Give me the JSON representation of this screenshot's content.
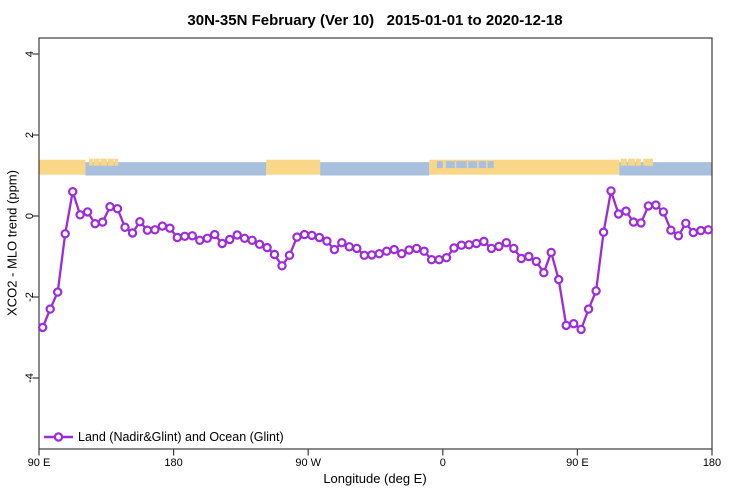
{
  "header": {
    "title": "30N-35N February (Ver 10)   2015-01-01 to 2020-12-18"
  },
  "chart_data": {
    "type": "line",
    "title": "30N-35N February (Ver 10)   2015-01-01 to 2020-12-18",
    "xlabel": "Longitude (deg E)",
    "ylabel": "XCO2 - MLO trend (ppm)",
    "grid": false,
    "xlim": [
      90,
      540
    ],
    "ylim": [
      -5.75,
      4.4
    ],
    "x_ticks": [
      {
        "deg": 90,
        "label": "90 E"
      },
      {
        "deg": 180,
        "label": "180"
      },
      {
        "deg": 270,
        "label": "90 W"
      },
      {
        "deg": 360,
        "label": "0"
      },
      {
        "deg": 450,
        "label": "90 E"
      },
      {
        "deg": 540,
        "label": "180"
      }
    ],
    "y_ticks": [
      {
        "value": 4,
        "label": "4"
      },
      {
        "value": 2,
        "label": "2"
      },
      {
        "value": 0,
        "label": "0"
      },
      {
        "value": -2,
        "label": "-2"
      },
      {
        "value": -4,
        "label": "-4"
      }
    ],
    "legend": {
      "label": "Land (Nadir&Glint) and Ocean (Glint)",
      "position": "bottom-left",
      "marker": "open-circle-on-line"
    },
    "series": [
      {
        "name": "Land (Nadir&Glint) and Ocean (Glint)",
        "color": "#9D2BD9",
        "marker": "open-circle",
        "x_deg_east": [
          92.5,
          97.5,
          102.5,
          107.5,
          112.5,
          117.5,
          122.5,
          127.5,
          132.5,
          137.5,
          142.5,
          147.5,
          152.5,
          157.5,
          162.5,
          167.5,
          172.5,
          177.5,
          182.5,
          187.5,
          192.5,
          197.5,
          202.5,
          207.5,
          212.5,
          217.5,
          222.5,
          227.5,
          232.5,
          237.5,
          242.5,
          247.5,
          252.5,
          257.5,
          262.5,
          267.5,
          272.5,
          277.5,
          282.5,
          287.5,
          292.5,
          297.5,
          302.5,
          307.5,
          312.5,
          317.5,
          322.5,
          327.5,
          332.5,
          337.5,
          342.5,
          347.5,
          352.5,
          357.5,
          362.5,
          367.5,
          372.5,
          377.5,
          382.5,
          387.5,
          392.5,
          397.5,
          402.5,
          407.5,
          412.5,
          417.5,
          422.5,
          427.5,
          432.5,
          437.5,
          442.5,
          447.5,
          452.5,
          457.5,
          462.5,
          467.5,
          472.5,
          477.5,
          482.5,
          487.5,
          492.5,
          497.5,
          502.5,
          507.5,
          512.5,
          517.5,
          522.5,
          527.5,
          532.5,
          537.5
        ],
        "y_ppm": [
          -2.75,
          -2.3,
          -1.88,
          -0.44,
          0.6,
          0.03,
          0.1,
          -0.19,
          -0.15,
          0.23,
          0.18,
          -0.28,
          -0.42,
          -0.14,
          -0.35,
          -0.34,
          -0.25,
          -0.3,
          -0.53,
          -0.5,
          -0.49,
          -0.6,
          -0.55,
          -0.46,
          -0.68,
          -0.58,
          -0.47,
          -0.55,
          -0.6,
          -0.7,
          -0.78,
          -0.95,
          -1.23,
          -0.97,
          -0.52,
          -0.46,
          -0.48,
          -0.53,
          -0.62,
          -0.83,
          -0.66,
          -0.76,
          -0.8,
          -0.97,
          -0.96,
          -0.93,
          -0.87,
          -0.83,
          -0.93,
          -0.84,
          -0.8,
          -0.87,
          -1.08,
          -1.08,
          -1.03,
          -0.79,
          -0.72,
          -0.71,
          -0.68,
          -0.63,
          -0.8,
          -0.75,
          -0.66,
          -0.8,
          -1.05,
          -1.0,
          -1.12,
          -1.4,
          -0.9,
          -1.57,
          -2.7,
          -2.66,
          -2.8,
          -2.3,
          -1.85,
          -0.4,
          0.62,
          0.05,
          0.12,
          -0.15,
          -0.17,
          0.25,
          0.27,
          0.1,
          -0.35,
          -0.49,
          -0.18,
          -0.41,
          -0.36,
          -0.34
        ]
      }
    ],
    "surface_strip": {
      "description": "land-ocean map band across 30N-35N",
      "land_color": "#FAD687",
      "ocean_color": "#A9BFDE",
      "land_value_range": [
        1.02,
        1.39
      ],
      "ocean_value_range": [
        1.0,
        1.33
      ],
      "segments": [
        {
          "from_deg": 90,
          "to_deg": 121,
          "surface": "land"
        },
        {
          "from_deg": 121,
          "to_deg": 242,
          "surface": "ocean"
        },
        {
          "from_deg": 242,
          "to_deg": 278,
          "surface": "land"
        },
        {
          "from_deg": 278,
          "to_deg": 351,
          "surface": "ocean"
        },
        {
          "from_deg": 351,
          "to_deg": 478,
          "surface": "land"
        },
        {
          "from_deg": 478,
          "to_deg": 540,
          "surface": "ocean"
        }
      ],
      "island_speckles_deg": [
        {
          "deg": 123.5,
          "w": 2.5
        },
        {
          "deg": 126.5,
          "w": 4
        },
        {
          "deg": 131,
          "w": 4.5
        },
        {
          "deg": 136,
          "w": 4
        },
        {
          "deg": 140.5,
          "w": 2.5
        },
        {
          "deg": 479,
          "w": 4
        },
        {
          "deg": 484,
          "w": 4.5
        },
        {
          "deg": 489,
          "w": 3.5
        },
        {
          "deg": 494,
          "w": 4
        },
        {
          "deg": 498,
          "w": 2.5
        }
      ],
      "sea_speckles_deg": [
        {
          "deg": 356,
          "w": 4
        },
        {
          "deg": 362,
          "w": 6
        },
        {
          "deg": 369,
          "w": 7
        },
        {
          "deg": 377,
          "w": 6
        },
        {
          "deg": 384,
          "w": 5
        },
        {
          "deg": 390,
          "w": 4
        }
      ]
    },
    "axis_color": "#3c3c3c"
  }
}
